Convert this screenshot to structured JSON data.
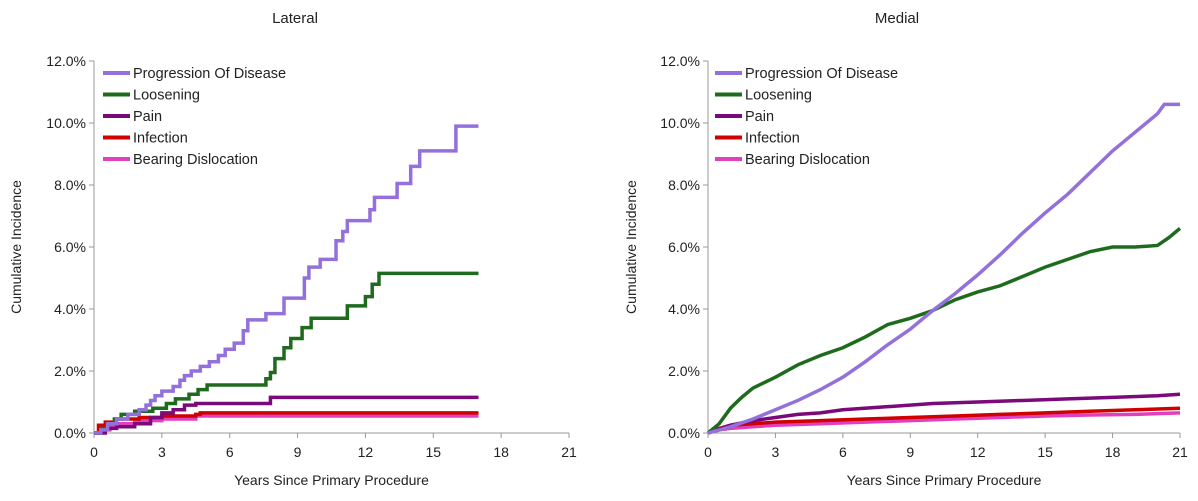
{
  "chart_data": [
    {
      "type": "line",
      "title": "Lateral",
      "xlabel": "Years Since Primary Procedure",
      "ylabel": "Cumulative Incidence",
      "xlim": [
        0,
        21
      ],
      "ylim": [
        0,
        12
      ],
      "xticks": [
        "0",
        "3",
        "6",
        "9",
        "12",
        "15",
        "18",
        "21"
      ],
      "yticks": [
        "0.0%",
        "2.0%",
        "4.0%",
        "6.0%",
        "8.0%",
        "10.0%",
        "12.0%"
      ],
      "grid": false,
      "legend": "top-left",
      "series": [
        {
          "name": "Progression Of Disease",
          "color": "#9370DB",
          "step": true,
          "points": [
            [
              0,
              0
            ],
            [
              0.3,
              0.1
            ],
            [
              0.6,
              0.3
            ],
            [
              1,
              0.45
            ],
            [
              1.5,
              0.6
            ],
            [
              2,
              0.75
            ],
            [
              2.3,
              0.9
            ],
            [
              2.5,
              1.05
            ],
            [
              2.7,
              1.2
            ],
            [
              3,
              1.35
            ],
            [
              3.5,
              1.5
            ],
            [
              3.8,
              1.7
            ],
            [
              4,
              1.85
            ],
            [
              4.3,
              2.0
            ],
            [
              4.7,
              2.15
            ],
            [
              5.1,
              2.3
            ],
            [
              5.5,
              2.5
            ],
            [
              5.8,
              2.7
            ],
            [
              6.2,
              2.9
            ],
            [
              6.6,
              3.3
            ],
            [
              6.8,
              3.65
            ],
            [
              7.3,
              3.65
            ],
            [
              7.6,
              3.85
            ],
            [
              8.2,
              3.85
            ],
            [
              8.4,
              4.35
            ],
            [
              9.1,
              4.35
            ],
            [
              9.3,
              5.0
            ],
            [
              9.5,
              5.35
            ],
            [
              9.9,
              5.35
            ],
            [
              10.0,
              5.6
            ],
            [
              10.5,
              5.6
            ],
            [
              10.7,
              6.2
            ],
            [
              11.0,
              6.5
            ],
            [
              11.2,
              6.85
            ],
            [
              12.0,
              6.85
            ],
            [
              12.2,
              7.2
            ],
            [
              12.4,
              7.6
            ],
            [
              13.2,
              7.6
            ],
            [
              13.4,
              8.05
            ],
            [
              13.9,
              8.05
            ],
            [
              14.0,
              8.6
            ],
            [
              14.4,
              9.1
            ],
            [
              15.9,
              9.1
            ],
            [
              16.0,
              9.9
            ],
            [
              17,
              9.9
            ]
          ]
        },
        {
          "name": "Loosening",
          "color": "#1E6B1E",
          "step": true,
          "points": [
            [
              0,
              0
            ],
            [
              0.3,
              0.15
            ],
            [
              0.6,
              0.3
            ],
            [
              0.9,
              0.45
            ],
            [
              1.2,
              0.6
            ],
            [
              1.8,
              0.7
            ],
            [
              2.6,
              0.8
            ],
            [
              3.2,
              0.95
            ],
            [
              3.6,
              1.1
            ],
            [
              4.2,
              1.25
            ],
            [
              4.6,
              1.4
            ],
            [
              5.0,
              1.55
            ],
            [
              7.3,
              1.55
            ],
            [
              7.6,
              1.75
            ],
            [
              7.8,
              1.95
            ],
            [
              8.0,
              2.4
            ],
            [
              8.4,
              2.75
            ],
            [
              8.7,
              3.05
            ],
            [
              9.2,
              3.4
            ],
            [
              9.6,
              3.7
            ],
            [
              11.0,
              3.7
            ],
            [
              11.2,
              4.1
            ],
            [
              12.0,
              4.4
            ],
            [
              12.3,
              4.8
            ],
            [
              12.6,
              5.15
            ],
            [
              17,
              5.15
            ]
          ]
        },
        {
          "name": "Pain",
          "color": "#7A0A7A",
          "step": true,
          "points": [
            [
              0,
              0
            ],
            [
              0.5,
              0.15
            ],
            [
              1.0,
              0.2
            ],
            [
              1.8,
              0.3
            ],
            [
              2.5,
              0.5
            ],
            [
              3.0,
              0.65
            ],
            [
              3.5,
              0.75
            ],
            [
              4.0,
              0.9
            ],
            [
              4.5,
              0.95
            ],
            [
              7.5,
              0.95
            ],
            [
              7.8,
              1.15
            ],
            [
              17,
              1.15
            ]
          ]
        },
        {
          "name": "Infection",
          "color": "#D00000",
          "step": true,
          "points": [
            [
              0,
              0
            ],
            [
              0.2,
              0.25
            ],
            [
              0.5,
              0.35
            ],
            [
              1.0,
              0.45
            ],
            [
              2.0,
              0.5
            ],
            [
              3.0,
              0.55
            ],
            [
              4.5,
              0.6
            ],
            [
              4.7,
              0.65
            ],
            [
              17,
              0.65
            ]
          ]
        },
        {
          "name": "Bearing Dislocation",
          "color": "#E040C0",
          "step": true,
          "points": [
            [
              0,
              0
            ],
            [
              0.3,
              0.1
            ],
            [
              0.7,
              0.2
            ],
            [
              1.0,
              0.3
            ],
            [
              1.8,
              0.4
            ],
            [
              3.0,
              0.45
            ],
            [
              4.5,
              0.55
            ],
            [
              17,
              0.55
            ]
          ]
        }
      ]
    },
    {
      "type": "line",
      "title": "Medial",
      "xlabel": "Years Since Primary Procedure",
      "ylabel": "Cumulative Incidence",
      "xlim": [
        0,
        21
      ],
      "ylim": [
        0,
        12
      ],
      "xticks": [
        "0",
        "3",
        "6",
        "9",
        "12",
        "15",
        "18",
        "21"
      ],
      "yticks": [
        "0.0%",
        "2.0%",
        "4.0%",
        "6.0%",
        "8.0%",
        "10.0%",
        "12.0%"
      ],
      "grid": false,
      "legend": "top-left",
      "series": [
        {
          "name": "Progression Of Disease",
          "color": "#9370DB",
          "step": false,
          "points": [
            [
              0,
              0
            ],
            [
              1,
              0.2
            ],
            [
              2,
              0.45
            ],
            [
              3,
              0.75
            ],
            [
              4,
              1.05
            ],
            [
              5,
              1.4
            ],
            [
              6,
              1.8
            ],
            [
              7,
              2.3
            ],
            [
              8,
              2.85
            ],
            [
              9,
              3.35
            ],
            [
              10,
              3.95
            ],
            [
              11,
              4.5
            ],
            [
              12,
              5.1
            ],
            [
              13,
              5.75
            ],
            [
              14,
              6.45
            ],
            [
              15,
              7.1
            ],
            [
              16,
              7.7
            ],
            [
              17,
              8.4
            ],
            [
              18,
              9.1
            ],
            [
              19,
              9.7
            ],
            [
              20,
              10.3
            ],
            [
              20.3,
              10.6
            ],
            [
              21,
              10.6
            ]
          ]
        },
        {
          "name": "Loosening",
          "color": "#1E6B1E",
          "step": false,
          "points": [
            [
              0,
              0
            ],
            [
              0.5,
              0.3
            ],
            [
              1,
              0.8
            ],
            [
              1.5,
              1.15
            ],
            [
              2,
              1.45
            ],
            [
              3,
              1.8
            ],
            [
              4,
              2.2
            ],
            [
              5,
              2.5
            ],
            [
              6,
              2.75
            ],
            [
              7,
              3.1
            ],
            [
              8,
              3.5
            ],
            [
              9,
              3.7
            ],
            [
              10,
              3.95
            ],
            [
              11,
              4.3
            ],
            [
              12,
              4.55
            ],
            [
              13,
              4.75
            ],
            [
              14,
              5.05
            ],
            [
              15,
              5.35
            ],
            [
              16,
              5.6
            ],
            [
              17,
              5.85
            ],
            [
              18,
              6.0
            ],
            [
              19,
              6.0
            ],
            [
              20,
              6.05
            ],
            [
              20.5,
              6.3
            ],
            [
              21,
              6.6
            ]
          ]
        },
        {
          "name": "Pain",
          "color": "#7A0A7A",
          "step": false,
          "points": [
            [
              0,
              0
            ],
            [
              1,
              0.25
            ],
            [
              2,
              0.4
            ],
            [
              3,
              0.5
            ],
            [
              4,
              0.6
            ],
            [
              5,
              0.65
            ],
            [
              6,
              0.75
            ],
            [
              8,
              0.85
            ],
            [
              10,
              0.95
            ],
            [
              12,
              1.0
            ],
            [
              14,
              1.05
            ],
            [
              16,
              1.1
            ],
            [
              18,
              1.15
            ],
            [
              20,
              1.2
            ],
            [
              21,
              1.25
            ]
          ]
        },
        {
          "name": "Infection",
          "color": "#D00000",
          "step": false,
          "points": [
            [
              0,
              0
            ],
            [
              0.5,
              0.15
            ],
            [
              1,
              0.25
            ],
            [
              2,
              0.3
            ],
            [
              3,
              0.35
            ],
            [
              5,
              0.4
            ],
            [
              7,
              0.45
            ],
            [
              9,
              0.5
            ],
            [
              11,
              0.55
            ],
            [
              13,
              0.6
            ],
            [
              15,
              0.65
            ],
            [
              17,
              0.7
            ],
            [
              19,
              0.75
            ],
            [
              21,
              0.8
            ]
          ]
        },
        {
          "name": "Bearing Dislocation",
          "color": "#E040C0",
          "step": false,
          "points": [
            [
              0,
              0
            ],
            [
              0.5,
              0.1
            ],
            [
              1,
              0.15
            ],
            [
              2,
              0.2
            ],
            [
              3,
              0.25
            ],
            [
              5,
              0.3
            ],
            [
              7,
              0.35
            ],
            [
              9,
              0.4
            ],
            [
              11,
              0.45
            ],
            [
              13,
              0.5
            ],
            [
              15,
              0.55
            ],
            [
              17,
              0.58
            ],
            [
              19,
              0.6
            ],
            [
              21,
              0.65
            ]
          ]
        }
      ]
    }
  ]
}
